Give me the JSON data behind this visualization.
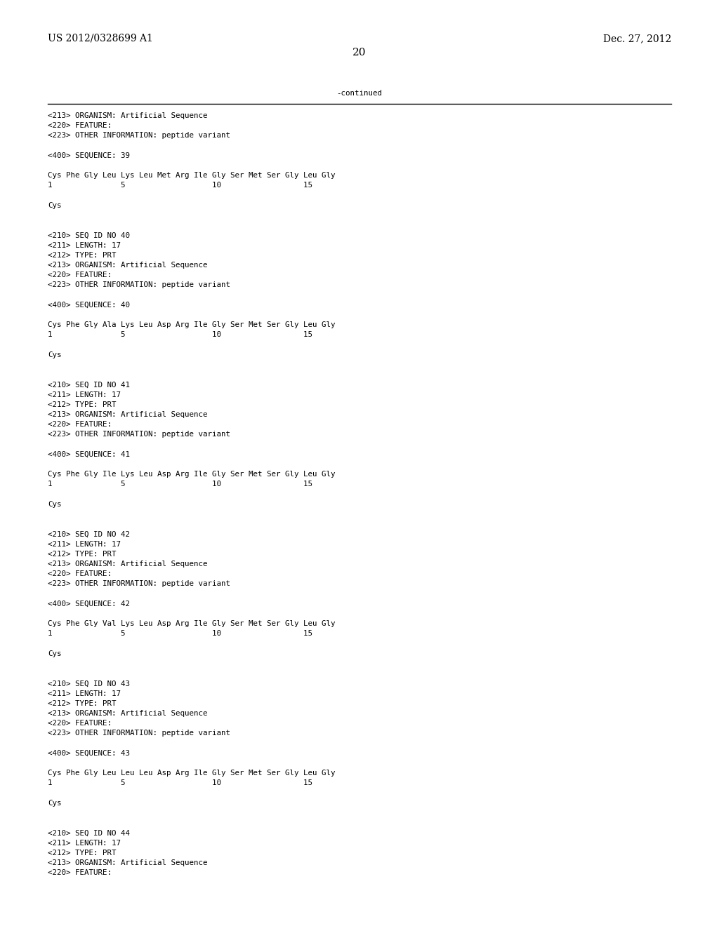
{
  "bg_color": "#ffffff",
  "header_left": "US 2012/0328699 A1",
  "header_right": "Dec. 27, 2012",
  "page_number": "20",
  "continued_label": "-continued",
  "content": [
    "<213> ORGANISM: Artificial Sequence",
    "<220> FEATURE:",
    "<223> OTHER INFORMATION: peptide variant",
    "",
    "<400> SEQUENCE: 39",
    "",
    "Cys Phe Gly Leu Lys Leu Met Arg Ile Gly Ser Met Ser Gly Leu Gly",
    "1               5                   10                  15",
    "",
    "Cys",
    "",
    "",
    "<210> SEQ ID NO 40",
    "<211> LENGTH: 17",
    "<212> TYPE: PRT",
    "<213> ORGANISM: Artificial Sequence",
    "<220> FEATURE:",
    "<223> OTHER INFORMATION: peptide variant",
    "",
    "<400> SEQUENCE: 40",
    "",
    "Cys Phe Gly Ala Lys Leu Asp Arg Ile Gly Ser Met Ser Gly Leu Gly",
    "1               5                   10                  15",
    "",
    "Cys",
    "",
    "",
    "<210> SEQ ID NO 41",
    "<211> LENGTH: 17",
    "<212> TYPE: PRT",
    "<213> ORGANISM: Artificial Sequence",
    "<220> FEATURE:",
    "<223> OTHER INFORMATION: peptide variant",
    "",
    "<400> SEQUENCE: 41",
    "",
    "Cys Phe Gly Ile Lys Leu Asp Arg Ile Gly Ser Met Ser Gly Leu Gly",
    "1               5                   10                  15",
    "",
    "Cys",
    "",
    "",
    "<210> SEQ ID NO 42",
    "<211> LENGTH: 17",
    "<212> TYPE: PRT",
    "<213> ORGANISM: Artificial Sequence",
    "<220> FEATURE:",
    "<223> OTHER INFORMATION: peptide variant",
    "",
    "<400> SEQUENCE: 42",
    "",
    "Cys Phe Gly Val Lys Leu Asp Arg Ile Gly Ser Met Ser Gly Leu Gly",
    "1               5                   10                  15",
    "",
    "Cys",
    "",
    "",
    "<210> SEQ ID NO 43",
    "<211> LENGTH: 17",
    "<212> TYPE: PRT",
    "<213> ORGANISM: Artificial Sequence",
    "<220> FEATURE:",
    "<223> OTHER INFORMATION: peptide variant",
    "",
    "<400> SEQUENCE: 43",
    "",
    "Cys Phe Gly Leu Leu Leu Asp Arg Ile Gly Ser Met Ser Gly Leu Gly",
    "1               5                   10                  15",
    "",
    "Cys",
    "",
    "",
    "<210> SEQ ID NO 44",
    "<211> LENGTH: 17",
    "<212> TYPE: PRT",
    "<213> ORGANISM: Artificial Sequence",
    "<220> FEATURE:"
  ],
  "mono_fontsize": 7.8,
  "header_fontsize": 10.0,
  "page_num_fontsize": 11.0
}
